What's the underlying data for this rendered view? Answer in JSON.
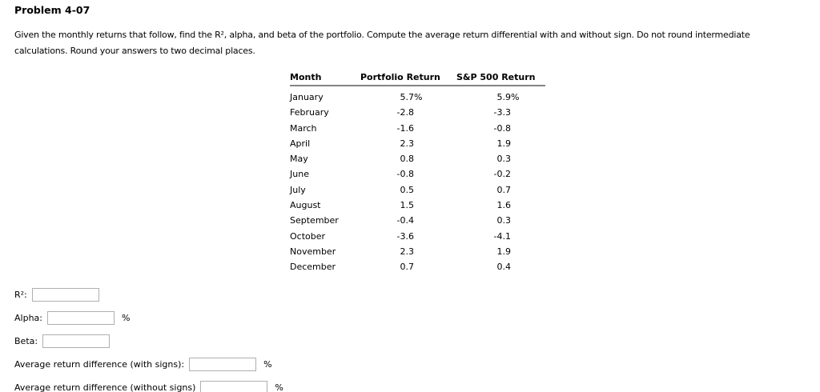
{
  "page": {
    "title": "Problem 4-07",
    "instructions": "Given the monthly returns that follow, find the R², alpha, and beta of the portfolio. Compute the average return differential with and without sign. Do not round intermediate calculations. Round your answers to two decimal places."
  },
  "table": {
    "headers": {
      "month": "Month",
      "portfolio": "Portfolio Return",
      "sp500": "S&P 500 Return"
    },
    "rows": [
      {
        "month": "January",
        "portfolio": "5.7",
        "portfolio_suffix": "%",
        "sp500": "5.9",
        "sp500_suffix": "%"
      },
      {
        "month": "February",
        "portfolio": "-2.8",
        "portfolio_suffix": "",
        "sp500": "-3.3",
        "sp500_suffix": ""
      },
      {
        "month": "March",
        "portfolio": "-1.6",
        "portfolio_suffix": "",
        "sp500": "-0.8",
        "sp500_suffix": ""
      },
      {
        "month": "April",
        "portfolio": "2.3",
        "portfolio_suffix": "",
        "sp500": "1.9",
        "sp500_suffix": ""
      },
      {
        "month": "May",
        "portfolio": "0.8",
        "portfolio_suffix": "",
        "sp500": "0.3",
        "sp500_suffix": ""
      },
      {
        "month": "June",
        "portfolio": "-0.8",
        "portfolio_suffix": "",
        "sp500": "-0.2",
        "sp500_suffix": ""
      },
      {
        "month": "July",
        "portfolio": "0.5",
        "portfolio_suffix": "",
        "sp500": "0.7",
        "sp500_suffix": ""
      },
      {
        "month": "August",
        "portfolio": "1.5",
        "portfolio_suffix": "",
        "sp500": "1.6",
        "sp500_suffix": ""
      },
      {
        "month": "September",
        "portfolio": "-0.4",
        "portfolio_suffix": "",
        "sp500": "0.3",
        "sp500_suffix": ""
      },
      {
        "month": "October",
        "portfolio": "-3.6",
        "portfolio_suffix": "",
        "sp500": "-4.1",
        "sp500_suffix": ""
      },
      {
        "month": "November",
        "portfolio": "2.3",
        "portfolio_suffix": "",
        "sp500": "1.9",
        "sp500_suffix": ""
      },
      {
        "month": "December",
        "portfolio": "0.7",
        "portfolio_suffix": "",
        "sp500": "0.4",
        "sp500_suffix": ""
      }
    ]
  },
  "answers": {
    "r2_label": "R²:",
    "r2_value": "",
    "alpha_label": "Alpha:",
    "alpha_value": "",
    "beta_label": "Beta:",
    "beta_value": "",
    "with_signs_label": "Average return difference (with signs):",
    "with_signs_value": "",
    "without_signs_label": "Average return difference (without signs)",
    "without_signs_value": "",
    "percent": "%"
  }
}
